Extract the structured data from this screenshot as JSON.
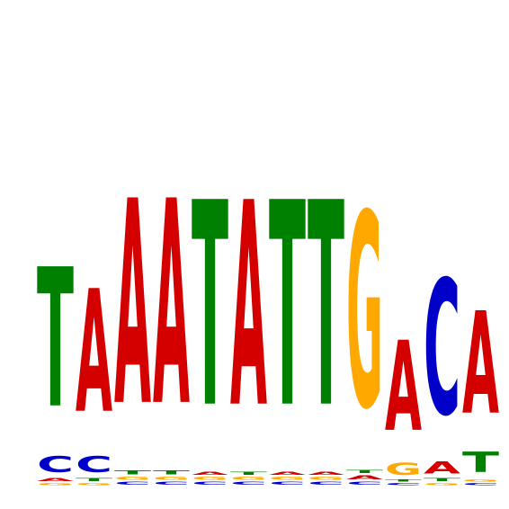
{
  "logo": {
    "type": "sequence-logo",
    "colors": {
      "A": "#d40000",
      "C": "#0000c8",
      "G": "#ffa800",
      "T": "#008000"
    },
    "columns": [
      [
        {
          "b": "G",
          "h": 0.01
        },
        {
          "b": "A",
          "h": 0.015
        },
        {
          "b": "C",
          "h": 0.08
        },
        {
          "b": "T",
          "h": 0.68
        }
      ],
      [
        {
          "b": "G",
          "h": 0.01
        },
        {
          "b": "T",
          "h": 0.015
        },
        {
          "b": "C",
          "h": 0.08
        },
        {
          "b": "A",
          "h": 0.6
        }
      ],
      [
        {
          "b": "C",
          "h": 0.015
        },
        {
          "b": "G",
          "h": 0.015
        },
        {
          "b": "T",
          "h": 0.02
        },
        {
          "b": "A",
          "h": 1.0
        }
      ],
      [
        {
          "b": "C",
          "h": 0.015
        },
        {
          "b": "G",
          "h": 0.015
        },
        {
          "b": "T",
          "h": 0.02
        },
        {
          "b": "A",
          "h": 1.0
        }
      ],
      [
        {
          "b": "C",
          "h": 0.015
        },
        {
          "b": "G",
          "h": 0.015
        },
        {
          "b": "A",
          "h": 0.015
        },
        {
          "b": "T",
          "h": 1.0
        }
      ],
      [
        {
          "b": "C",
          "h": 0.015
        },
        {
          "b": "G",
          "h": 0.015
        },
        {
          "b": "T",
          "h": 0.015
        },
        {
          "b": "A",
          "h": 1.0
        }
      ],
      [
        {
          "b": "C",
          "h": 0.015
        },
        {
          "b": "G",
          "h": 0.015
        },
        {
          "b": "A",
          "h": 0.015
        },
        {
          "b": "T",
          "h": 1.0
        }
      ],
      [
        {
          "b": "C",
          "h": 0.015
        },
        {
          "b": "G",
          "h": 0.015
        },
        {
          "b": "A",
          "h": 0.015
        },
        {
          "b": "T",
          "h": 1.0
        }
      ],
      [
        {
          "b": "C",
          "h": 0.015
        },
        {
          "b": "A",
          "h": 0.02
        },
        {
          "b": "T",
          "h": 0.015
        },
        {
          "b": "G",
          "h": 0.95
        }
      ],
      [
        {
          "b": "C",
          "h": 0.01
        },
        {
          "b": "T",
          "h": 0.01
        },
        {
          "b": "G",
          "h": 0.06
        },
        {
          "b": "A",
          "h": 0.44
        }
      ],
      [
        {
          "b": "G",
          "h": 0.01
        },
        {
          "b": "T",
          "h": 0.015
        },
        {
          "b": "A",
          "h": 0.06
        },
        {
          "b": "C",
          "h": 0.66
        }
      ],
      [
        {
          "b": "C",
          "h": 0.01
        },
        {
          "b": "G",
          "h": 0.01
        },
        {
          "b": "T",
          "h": 0.1
        },
        {
          "b": "A",
          "h": 0.5
        }
      ]
    ]
  }
}
